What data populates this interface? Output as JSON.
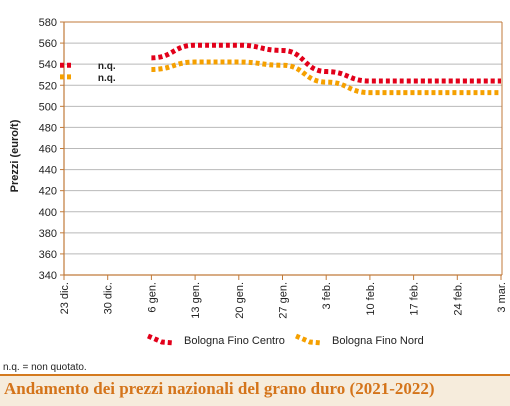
{
  "chart_data": {
    "type": "line",
    "title": "Andamento dei prezzi nazionali del grano duro (2021-2022)",
    "ylabel": "Prezzi (euro/t)",
    "xlabel": "",
    "ylim": [
      340,
      580
    ],
    "yticks": [
      340,
      360,
      380,
      400,
      420,
      440,
      460,
      480,
      500,
      520,
      540,
      560,
      580
    ],
    "categories": [
      "23 dic.",
      "30 dic.",
      "6 gen.",
      "13 gen.",
      "20 gen.",
      "27 gen.",
      "3 feb.",
      "10 feb.",
      "17 feb.",
      "24 feb.",
      "3 mar."
    ],
    "grid": "horizontal",
    "legend_position": "bottom",
    "series": [
      {
        "name": "Bologna Fino Centro",
        "color": "#e2001a",
        "values": [
          539,
          null,
          546,
          558,
          558,
          553,
          533,
          524,
          524,
          524,
          524
        ],
        "annotation": "n.q."
      },
      {
        "name": "Bologna Fino Nord",
        "color": "#f5a000",
        "values": [
          528,
          null,
          535,
          542,
          542,
          539,
          523,
          513,
          513,
          513,
          513
        ],
        "annotation": "n.q."
      }
    ],
    "footnote": "n.q. = non quotato."
  },
  "colors": {
    "axis": "#c07a3a",
    "grid": "#b9b9b9",
    "title_accent": "#d4741a",
    "title_band": "#f6ecdc"
  }
}
